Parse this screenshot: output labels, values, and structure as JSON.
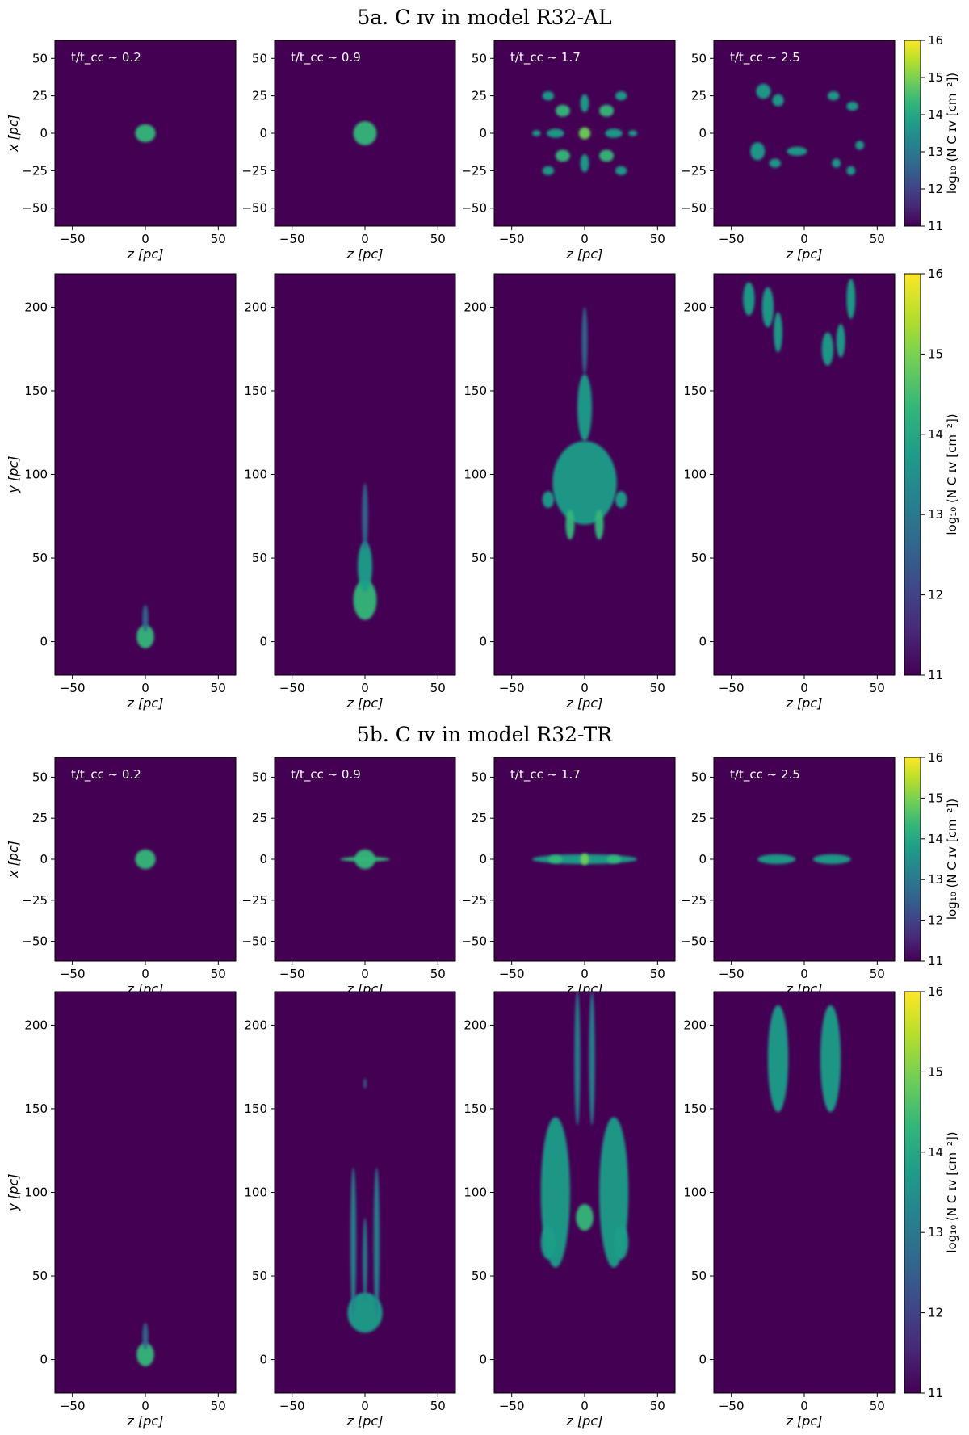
{
  "figure": {
    "titles": [
      "5a. C ɪᴠ in model R32-AL",
      "5b. C ɪᴠ in model R32-TR"
    ]
  },
  "colors": {
    "background": "#440154",
    "colormap": [
      "#440154",
      "#482878",
      "#3e4989",
      "#31688e",
      "#26828e",
      "#1f9e89",
      "#35b779",
      "#6ece58",
      "#b5de2b",
      "#fde725"
    ]
  },
  "chart_data": [
    {
      "type": "heatmap",
      "group": "5a. C ɪᴠ in model R32-AL",
      "view": "x-z",
      "xlabel": "z [pc]",
      "ylabel": "x [pc]",
      "xlim": [
        -62,
        62
      ],
      "ylim": [
        -62,
        62
      ],
      "xticks": [
        -50,
        0,
        50
      ],
      "yticks": [
        -50,
        -25,
        0,
        25,
        50
      ],
      "panels": [
        {
          "label": "t/t_cc ~ 0.2",
          "time": 0.2,
          "blobs": [
            {
              "z": 0,
              "x": 0,
              "rz": 7,
              "rx": 6,
              "level": 14.5
            }
          ]
        },
        {
          "label": "t/t_cc ~ 0.9",
          "time": 0.9,
          "blobs": [
            {
              "z": 0,
              "x": 0,
              "rz": 8,
              "rx": 8,
              "level": 14.5
            }
          ]
        },
        {
          "label": "t/t_cc ~ 1.7",
          "time": 1.7,
          "blobs": [
            {
              "z": 0,
              "x": 0,
              "rz": 4,
              "rx": 4,
              "level": 15
            },
            {
              "z": -15,
              "x": 15,
              "rz": 5,
              "rx": 4,
              "level": 14.5
            },
            {
              "z": 15,
              "x": 15,
              "rz": 5,
              "rx": 4,
              "level": 14.5
            },
            {
              "z": -15,
              "x": -15,
              "rz": 5,
              "rx": 4,
              "level": 14.5
            },
            {
              "z": 15,
              "x": -15,
              "rz": 5,
              "rx": 4,
              "level": 14.5
            },
            {
              "z": -25,
              "x": 25,
              "rz": 4,
              "rx": 3,
              "level": 14
            },
            {
              "z": 25,
              "x": 25,
              "rz": 4,
              "rx": 3,
              "level": 14
            },
            {
              "z": -25,
              "x": -25,
              "rz": 4,
              "rx": 3,
              "level": 14
            },
            {
              "z": 25,
              "x": -25,
              "rz": 4,
              "rx": 3,
              "level": 14
            },
            {
              "z": 0,
              "x": 20,
              "rz": 3,
              "rx": 6,
              "level": 14
            },
            {
              "z": 0,
              "x": -20,
              "rz": 3,
              "rx": 6,
              "level": 14
            },
            {
              "z": -20,
              "x": 0,
              "rz": 6,
              "rx": 3,
              "level": 14
            },
            {
              "z": 20,
              "x": 0,
              "rz": 6,
              "rx": 3,
              "level": 14
            },
            {
              "z": -33,
              "x": 0,
              "rz": 3,
              "rx": 2,
              "level": 13.5
            },
            {
              "z": 33,
              "x": 0,
              "rz": 3,
              "rx": 2,
              "level": 13.5
            }
          ]
        },
        {
          "label": "t/t_cc ~ 2.5",
          "time": 2.5,
          "blobs": [
            {
              "z": -28,
              "x": 28,
              "rz": 5,
              "rx": 5,
              "level": 13.5
            },
            {
              "z": -18,
              "x": 22,
              "rz": 4,
              "rx": 4,
              "level": 13.5
            },
            {
              "z": 20,
              "x": 25,
              "rz": 4,
              "rx": 3,
              "level": 13.5
            },
            {
              "z": 33,
              "x": 18,
              "rz": 4,
              "rx": 3,
              "level": 13.5
            },
            {
              "z": -32,
              "x": -12,
              "rz": 5,
              "rx": 6,
              "level": 13.5
            },
            {
              "z": -20,
              "x": -20,
              "rz": 4,
              "rx": 3,
              "level": 13.5
            },
            {
              "z": -5,
              "x": -12,
              "rz": 7,
              "rx": 3,
              "level": 13.5
            },
            {
              "z": 22,
              "x": -20,
              "rz": 3,
              "rx": 3,
              "level": 13.5
            },
            {
              "z": 32,
              "x": -25,
              "rz": 3,
              "rx": 3,
              "level": 13.5
            },
            {
              "z": 38,
              "x": -8,
              "rz": 3,
              "rx": 3,
              "level": 13.5
            }
          ]
        }
      ]
    },
    {
      "type": "heatmap",
      "group": "5a. C ɪᴠ in model R32-AL",
      "view": "y-z",
      "xlabel": "z [pc]",
      "ylabel": "y [pc]",
      "xlim": [
        -62,
        62
      ],
      "ylim": [
        -20,
        220
      ],
      "xticks": [
        -50,
        0,
        50
      ],
      "yticks": [
        0,
        50,
        100,
        150,
        200
      ],
      "panels": [
        {
          "time": 0.2,
          "blobs": [
            {
              "z": 0,
              "y": 3,
              "rz": 6,
              "ry": 7,
              "level": 14.5
            },
            {
              "z": 0,
              "y": 14,
              "rz": 2,
              "ry": 8,
              "level": 12.5
            }
          ]
        },
        {
          "time": 0.9,
          "blobs": [
            {
              "z": 0,
              "y": 25,
              "rz": 8,
              "ry": 12,
              "level": 14.5
            },
            {
              "z": 0,
              "y": 45,
              "rz": 5,
              "ry": 15,
              "level": 13.5
            },
            {
              "z": 0,
              "y": 75,
              "rz": 2,
              "ry": 20,
              "level": 12.5
            }
          ]
        },
        {
          "time": 1.7,
          "blobs": [
            {
              "z": 0,
              "y": 95,
              "rz": 22,
              "ry": 25,
              "level": 14
            },
            {
              "z": -10,
              "y": 70,
              "rz": 3,
              "ry": 9,
              "level": 14.5
            },
            {
              "z": 10,
              "y": 70,
              "rz": 3,
              "ry": 9,
              "level": 14.5
            },
            {
              "z": -25,
              "y": 85,
              "rz": 4,
              "ry": 5,
              "level": 14
            },
            {
              "z": 25,
              "y": 85,
              "rz": 4,
              "ry": 5,
              "level": 14
            },
            {
              "z": 0,
              "y": 140,
              "rz": 5,
              "ry": 20,
              "level": 13.5
            },
            {
              "z": 0,
              "y": 180,
              "rz": 2,
              "ry": 20,
              "level": 12.5
            }
          ]
        },
        {
          "time": 2.5,
          "blobs": [
            {
              "z": -38,
              "y": 205,
              "rz": 4,
              "ry": 10,
              "level": 13.5
            },
            {
              "z": -25,
              "y": 200,
              "rz": 4,
              "ry": 12,
              "level": 13.5
            },
            {
              "z": -18,
              "y": 185,
              "rz": 3,
              "ry": 12,
              "level": 13.5
            },
            {
              "z": 16,
              "y": 175,
              "rz": 4,
              "ry": 10,
              "level": 13.5
            },
            {
              "z": 25,
              "y": 180,
              "rz": 3,
              "ry": 10,
              "level": 13.5
            },
            {
              "z": 32,
              "y": 205,
              "rz": 3,
              "ry": 12,
              "level": 13.5
            }
          ]
        }
      ]
    },
    {
      "type": "heatmap",
      "group": "5b. C ɪᴠ in model R32-TR",
      "view": "x-z",
      "xlabel": "z [pc]",
      "ylabel": "x [pc]",
      "xlim": [
        -62,
        62
      ],
      "ylim": [
        -62,
        62
      ],
      "xticks": [
        -50,
        0,
        50
      ],
      "yticks": [
        -50,
        -25,
        0,
        25,
        50
      ],
      "panels": [
        {
          "label": "t/t_cc ~ 0.2",
          "time": 0.2,
          "blobs": [
            {
              "z": 0,
              "x": 0,
              "rz": 7,
              "rx": 6,
              "level": 14.5
            }
          ]
        },
        {
          "label": "t/t_cc ~ 0.9",
          "time": 0.9,
          "blobs": [
            {
              "z": 0,
              "x": 0,
              "rz": 7,
              "rx": 6,
              "level": 14.5
            },
            {
              "z": 0,
              "x": 0,
              "rz": 17,
              "rx": 1.5,
              "level": 14.5
            }
          ]
        },
        {
          "label": "t/t_cc ~ 1.7",
          "time": 1.7,
          "blobs": [
            {
              "z": 0,
              "x": 0,
              "rz": 36,
              "rx": 3,
              "level": 14
            },
            {
              "z": 0,
              "x": 0,
              "rz": 3,
              "rx": 3.5,
              "level": 15
            },
            {
              "z": -20,
              "x": 0,
              "rz": 5,
              "rx": 2.5,
              "level": 14.5
            },
            {
              "z": 20,
              "x": 0,
              "rz": 5,
              "rx": 2.5,
              "level": 14.5
            }
          ]
        },
        {
          "label": "t/t_cc ~ 2.5",
          "time": 2.5,
          "blobs": [
            {
              "z": -19,
              "x": 0,
              "rz": 13,
              "rx": 3,
              "level": 14
            },
            {
              "z": 19,
              "x": 0,
              "rz": 13,
              "rx": 3,
              "level": 14
            }
          ]
        }
      ]
    },
    {
      "type": "heatmap",
      "group": "5b. C ɪᴠ in model R32-TR",
      "view": "y-z",
      "xlabel": "z [pc]",
      "ylabel": "y [pc]",
      "xlim": [
        -62,
        62
      ],
      "ylim": [
        -20,
        220
      ],
      "xticks": [
        -50,
        0,
        50
      ],
      "yticks": [
        0,
        50,
        100,
        150,
        200
      ],
      "panels": [
        {
          "time": 0.2,
          "blobs": [
            {
              "z": 0,
              "y": 3,
              "rz": 6,
              "ry": 7,
              "level": 14.5
            },
            {
              "z": 0,
              "y": 14,
              "rz": 2,
              "ry": 8,
              "level": 12.5
            }
          ]
        },
        {
          "time": 0.9,
          "blobs": [
            {
              "z": 0,
              "y": 28,
              "rz": 12,
              "ry": 12,
              "level": 14
            },
            {
              "z": -8,
              "y": 70,
              "rz": 2,
              "ry": 45,
              "level": 13
            },
            {
              "z": 8,
              "y": 70,
              "rz": 2,
              "ry": 45,
              "level": 13
            },
            {
              "z": 0,
              "y": 60,
              "rz": 1.5,
              "ry": 25,
              "level": 13
            },
            {
              "z": 0,
              "y": 165,
              "rz": 1,
              "ry": 3,
              "level": 12.5
            }
          ]
        },
        {
          "time": 1.7,
          "blobs": [
            {
              "z": 0,
              "y": 85,
              "rz": 6,
              "ry": 8,
              "level": 14.5
            },
            {
              "z": -20,
              "y": 100,
              "rz": 10,
              "ry": 45,
              "level": 13.5
            },
            {
              "z": 20,
              "y": 100,
              "rz": 10,
              "ry": 45,
              "level": 13.5
            },
            {
              "z": -25,
              "y": 70,
              "rz": 5,
              "ry": 10,
              "level": 14
            },
            {
              "z": 25,
              "y": 70,
              "rz": 5,
              "ry": 10,
              "level": 14
            },
            {
              "z": -5,
              "y": 180,
              "rz": 2,
              "ry": 40,
              "level": 13
            },
            {
              "z": 5,
              "y": 180,
              "rz": 2,
              "ry": 40,
              "level": 13
            }
          ]
        },
        {
          "time": 2.5,
          "blobs": [
            {
              "z": -18,
              "y": 180,
              "rz": 7,
              "ry": 32,
              "level": 13.5
            },
            {
              "z": 18,
              "y": 180,
              "rz": 7,
              "ry": 32,
              "level": 13.5
            }
          ]
        }
      ]
    }
  ],
  "colorbar": {
    "label": "log₁₀ (N C ɪᴠ [cm⁻²])",
    "range": [
      11,
      16
    ],
    "ticks": [
      11,
      12,
      13,
      14,
      15,
      16
    ]
  }
}
